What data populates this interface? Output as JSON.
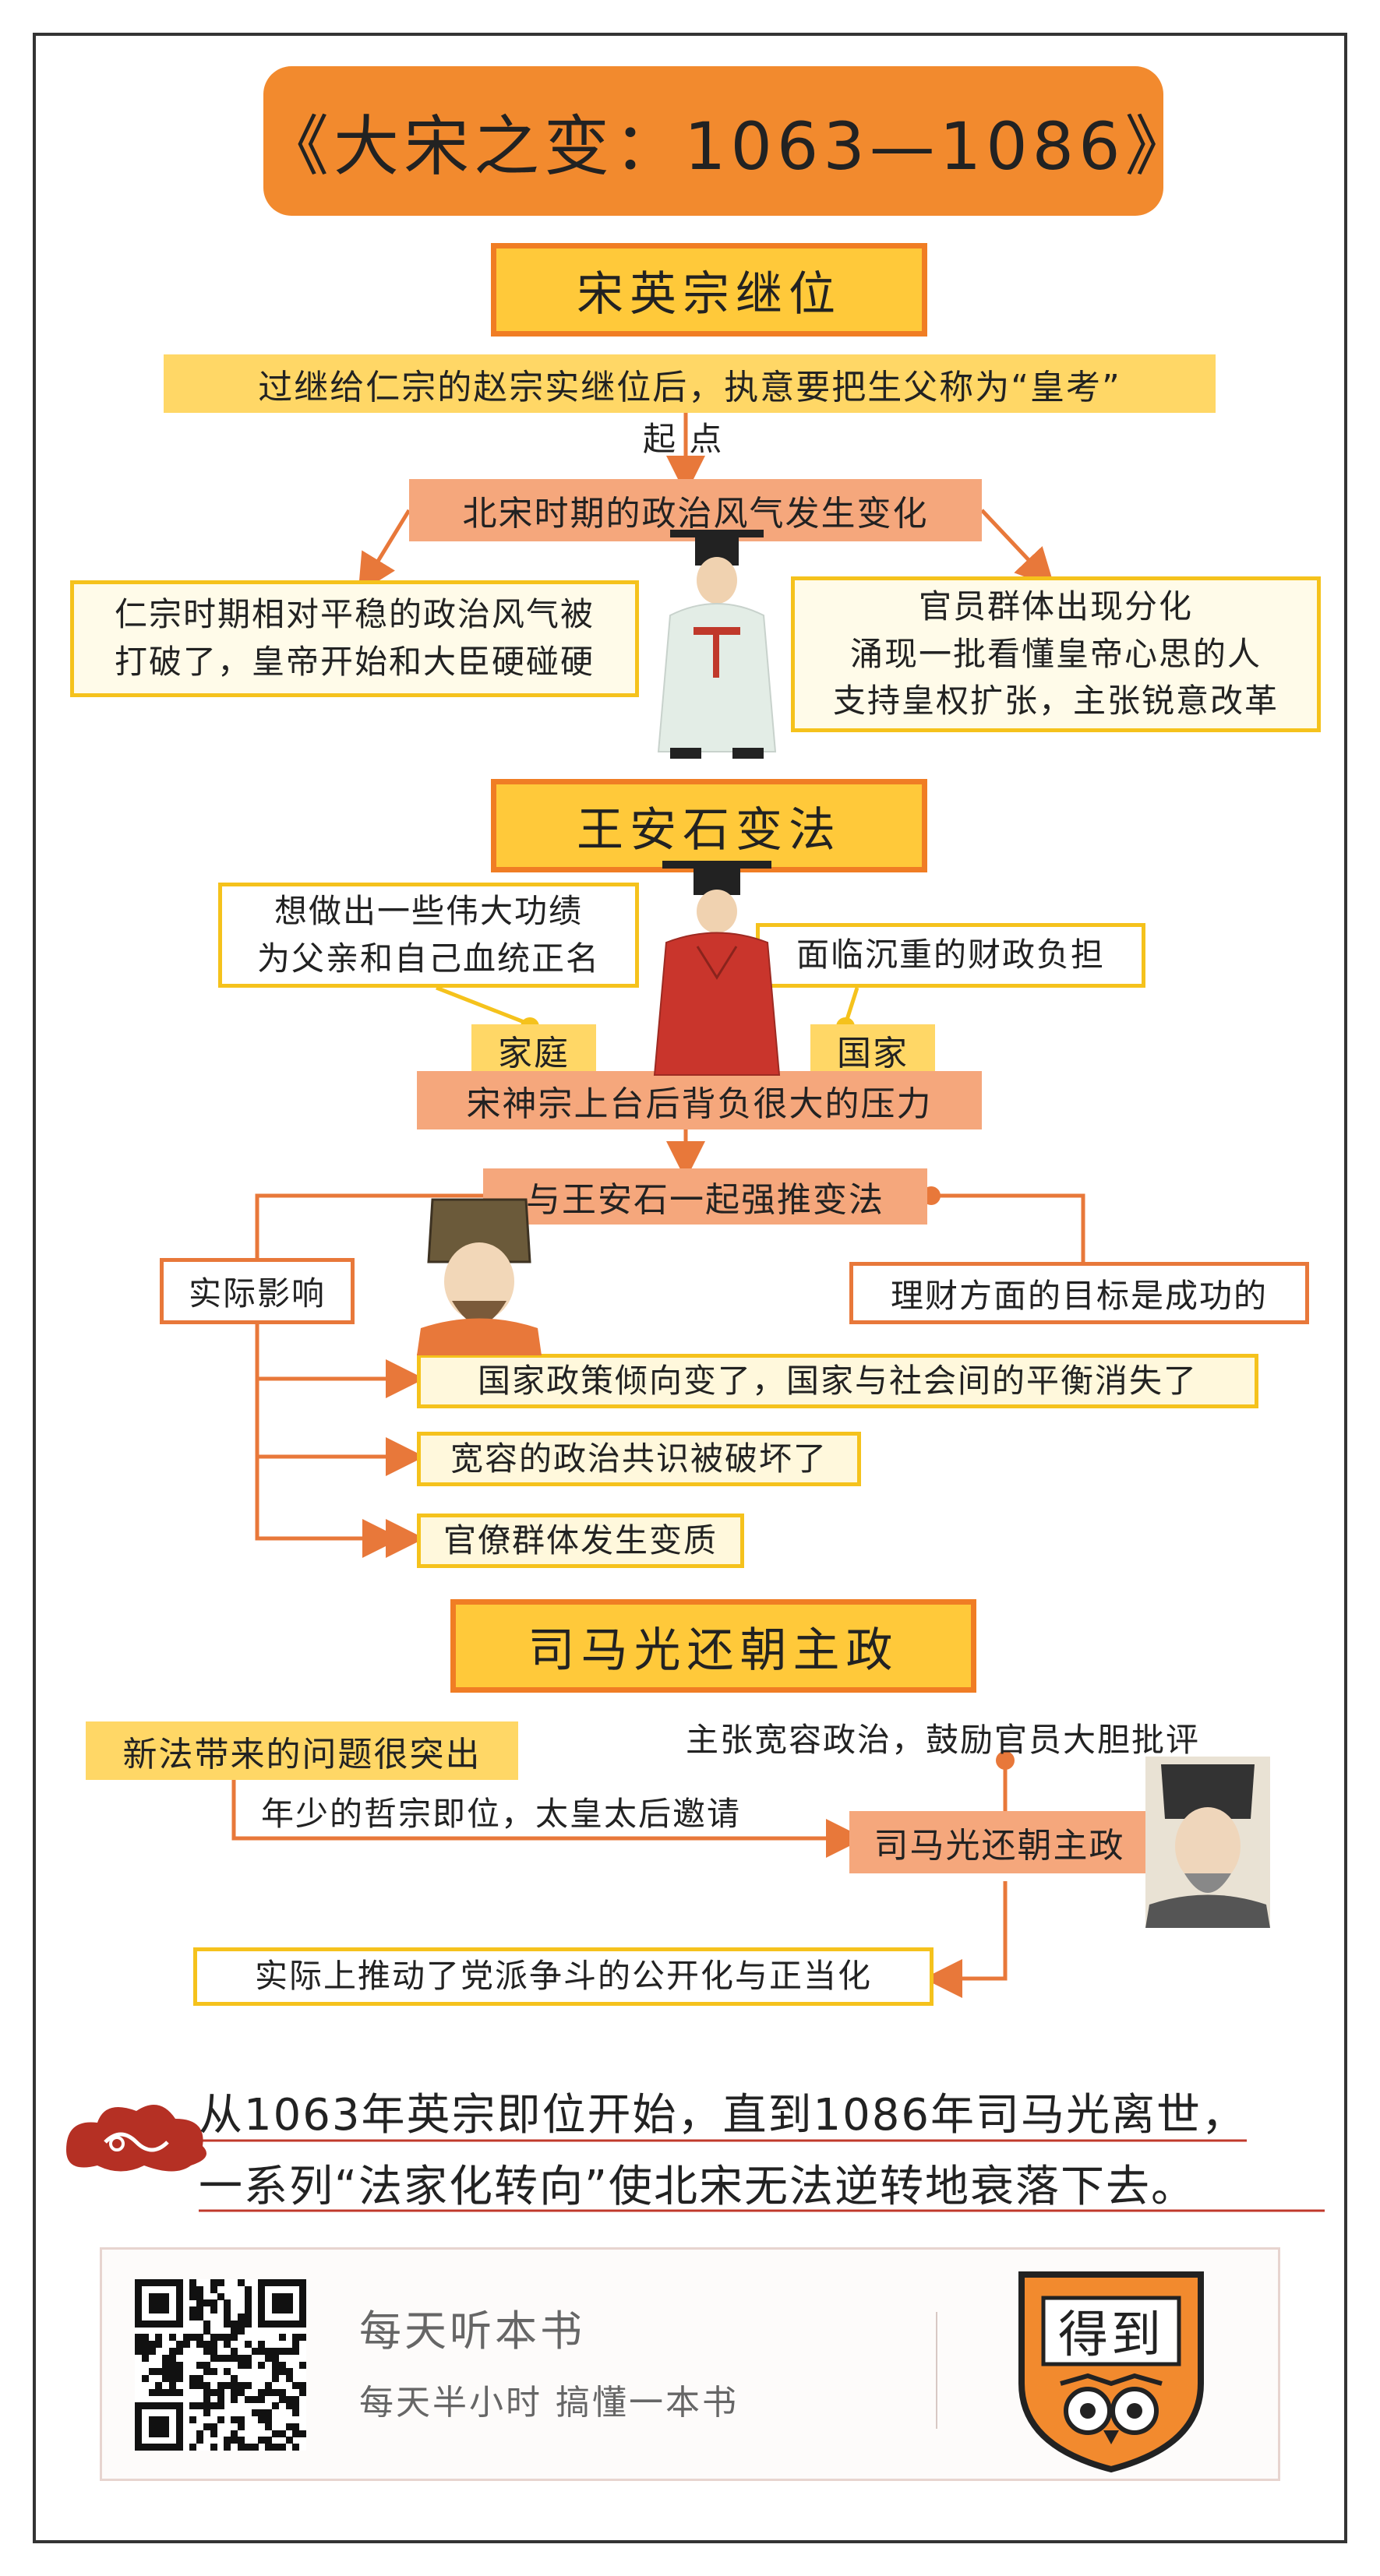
{
  "title": "《大宋之变：1063—1086》",
  "sections": {
    "s1": {
      "heading": "宋英宗继位",
      "intro": "过继给仁宗的赵宗实继位后，执意要把生父称为“皇考”",
      "start_label": "起 点",
      "change": "北宋时期的政治风气发生变化",
      "left_box": [
        "仁宗时期相对平稳的政治风气被",
        "打破了，皇帝开始和大臣硬碰硬"
      ],
      "right_box": [
        "官员群体出现分化",
        "涌现一批看懂皇帝心思的人",
        "支持皇权扩张，主张锐意改革"
      ]
    },
    "s2": {
      "heading": "王安石变法",
      "family_box": [
        "想做出一些伟大功绩",
        "为父亲和自己血统正名"
      ],
      "state_box": "面临沉重的财政负担",
      "family_label": "家庭",
      "state_label": "国家",
      "pressure": "宋神宗上台后背负很大的压力",
      "reform": "与王安石一起强推变法",
      "impact_label": "实际影响",
      "finance_box": "理财方面的目标是成功的",
      "impacts": [
        "国家政策倾向变了，国家与社会间的平衡消失了",
        "宽容的政治共识被破坏了",
        "官僚群体发生变质"
      ]
    },
    "s3": {
      "heading": "司马光还朝主政",
      "problem": "新法带来的问题很突出",
      "invite": "年少的哲宗即位，太皇太后邀请",
      "advocate": "主张宽容政治，鼓励官员大胆批评",
      "return": "司马光还朝主政",
      "result": "实际上推动了党派争斗的公开化与正当化"
    }
  },
  "summary": [
    "从1063年英宗即位开始，直到1086年司马光离世，",
    "一系列“法家化转向”使北宋无法逆转地衰落下去。"
  ],
  "footer": {
    "slogan_main": "每天听本书",
    "slogan_sub": "每天半小时  搞懂一本书",
    "logo_text": "得到",
    "qr_icon": "qr-code-icon",
    "logo_icon": "owl-shield-icon"
  },
  "colors": {
    "orange": "#f28a2e",
    "yellow": "#ffc93a",
    "arrow": "#e8783a",
    "red_line": "#c0392b"
  }
}
